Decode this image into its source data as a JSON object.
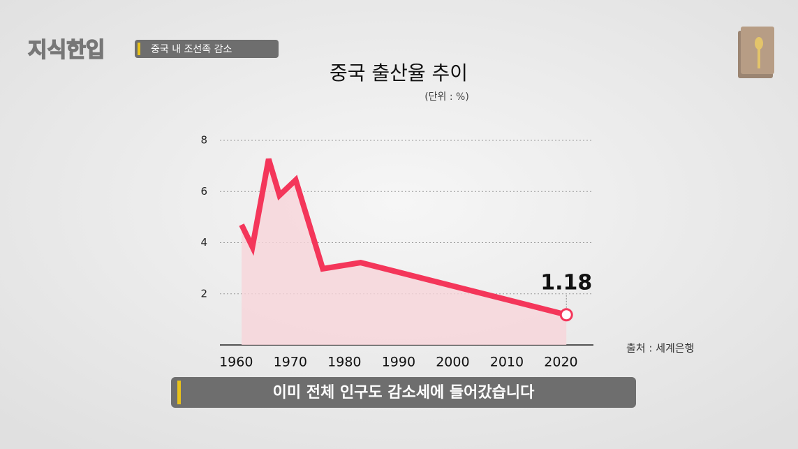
{
  "logo": "지식한입",
  "header": "중국 내 조선족 감소",
  "caption": "이미 전체 인구도 감소세에 들어갔습니다",
  "chart_data": {
    "type": "line",
    "title": "중국 출산율 추이",
    "subtitle": "(단위 : %)",
    "source": "출처 : 세계은행",
    "x": [
      1961,
      1963,
      1966,
      1968,
      1971,
      1976,
      1983,
      2021
    ],
    "series": [
      {
        "color": "#f4365a",
        "fill_color": "#f8d4da",
        "values": [
          4.7,
          3.83,
          7.27,
          5.85,
          6.45,
          2.98,
          3.22,
          1.18
        ]
      }
    ],
    "xlim": [
      1957,
      2026
    ],
    "ylim": [
      0,
      8
    ],
    "xticks": [
      1960,
      1970,
      1980,
      1990,
      2000,
      2010,
      2020
    ],
    "yticks": [
      2,
      4,
      6,
      8
    ],
    "grid": true
  }
}
